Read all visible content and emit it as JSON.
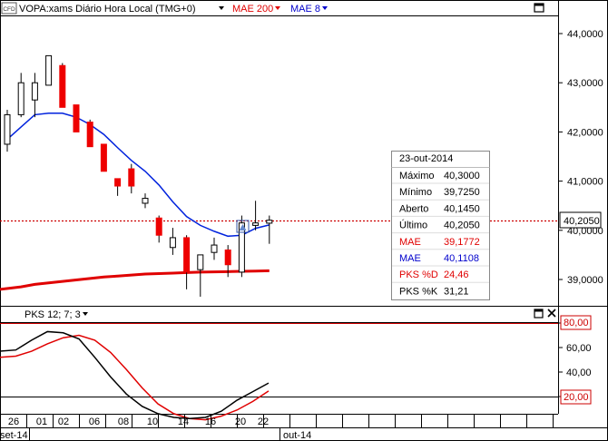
{
  "header": {
    "cfd_badge": "CFD",
    "instrument_label": "VOPA:xams Diário Hora Local (TMG+0)",
    "indicator_1": "MAE 200",
    "indicator_2": "MAE 8"
  },
  "price_axis": {
    "ticks": [
      "44,0000",
      "43,0000",
      "42,0000",
      "41,0000",
      "40,0000",
      "39,0000"
    ],
    "current_price": "40,2050"
  },
  "tooltip": {
    "date": "23-out-2014",
    "rows": [
      {
        "label": "Máximo",
        "value": "40,3000",
        "color": "#000000"
      },
      {
        "label": "Mínimo",
        "value": "39,7250",
        "color": "#000000"
      },
      {
        "label": "Aberto",
        "value": "40,1450",
        "color": "#000000"
      },
      {
        "label": "Último",
        "value": "40,2050",
        "color": "#000000"
      },
      {
        "label": "MAE",
        "value": "39,1772",
        "color": "#e00000"
      },
      {
        "label": "MAE",
        "value": "40,1108",
        "color": "#0000cc"
      },
      {
        "label": "PKS %D",
        "value": "24,46",
        "color": "#e00000"
      },
      {
        "label": "PKS %K",
        "value": "31,21",
        "color": "#000000"
      }
    ]
  },
  "oscillator": {
    "label": "PKS 12; 7; 3",
    "ticks": [
      "80,00",
      "60,00",
      "40,00",
      "20,00"
    ],
    "upper_level": "80,00",
    "lower_level": "20,00"
  },
  "date_axis": {
    "days": [
      "26",
      "01",
      "02",
      "06",
      "08",
      "10",
      "14",
      "16",
      "20",
      "22"
    ],
    "months": [
      "set-14",
      "out-14"
    ]
  },
  "colors": {
    "up_candle": "#ffffff",
    "down_candle": "#ee0000",
    "mae200": "#e00000",
    "mae8": "#0022dd",
    "stoch_k": "#000000",
    "stoch_d": "#e00000"
  },
  "chart_data": {
    "type": "candlestick",
    "price_range": [
      38.6,
      44.5
    ],
    "candles": [
      {
        "o": 41.75,
        "h": 42.45,
        "l": 41.6,
        "c": 42.35
      },
      {
        "o": 42.35,
        "h": 43.2,
        "l": 42.3,
        "c": 43.0
      },
      {
        "o": 42.65,
        "h": 43.2,
        "l": 42.3,
        "c": 43.0
      },
      {
        "o": 42.95,
        "h": 43.55,
        "l": 42.95,
        "c": 43.55
      },
      {
        "o": 43.35,
        "h": 43.4,
        "l": 42.5,
        "c": 42.5
      },
      {
        "o": 42.55,
        "h": 42.55,
        "l": 42.0,
        "c": 42.0
      },
      {
        "o": 42.2,
        "h": 42.25,
        "l": 41.7,
        "c": 41.7
      },
      {
        "o": 41.75,
        "h": 41.75,
        "l": 41.2,
        "c": 41.2
      },
      {
        "o": 41.05,
        "h": 41.05,
        "l": 40.7,
        "c": 40.9
      },
      {
        "o": 41.25,
        "h": 41.35,
        "l": 40.75,
        "c": 40.9
      },
      {
        "o": 40.55,
        "h": 40.75,
        "l": 40.45,
        "c": 40.65
      },
      {
        "o": 40.25,
        "h": 40.3,
        "l": 39.75,
        "c": 39.9
      },
      {
        "o": 39.65,
        "h": 40.05,
        "l": 39.5,
        "c": 39.85
      },
      {
        "o": 39.85,
        "h": 39.9,
        "l": 38.8,
        "c": 39.15
      },
      {
        "o": 39.2,
        "h": 39.5,
        "l": 38.65,
        "c": 39.5
      },
      {
        "o": 39.55,
        "h": 39.85,
        "l": 39.4,
        "c": 39.7
      },
      {
        "o": 39.6,
        "h": 39.7,
        "l": 39.05,
        "c": 39.3
      },
      {
        "o": 39.15,
        "h": 40.3,
        "l": 39.05,
        "c": 40.15
      },
      {
        "o": 40.1,
        "h": 40.6,
        "l": 40.0,
        "c": 40.15
      },
      {
        "o": 40.145,
        "h": 40.3,
        "l": 39.725,
        "c": 40.205
      }
    ],
    "mae8": [
      41.85,
      42.1,
      42.35,
      42.38,
      42.38,
      42.3,
      42.15,
      41.95,
      41.68,
      41.42,
      41.2,
      40.92,
      40.58,
      40.28,
      40.1,
      39.98,
      39.88,
      39.9,
      40.04,
      40.11
    ],
    "mae200": [
      38.8,
      38.85,
      38.9,
      38.93,
      38.96,
      38.99,
      39.02,
      39.05,
      39.07,
      39.09,
      39.11,
      39.12,
      39.13,
      39.14,
      39.15,
      39.155,
      39.16,
      39.165,
      39.17,
      39.177
    ],
    "stoch_range": [
      0,
      100
    ],
    "stoch_k": [
      57,
      58,
      66,
      73,
      72,
      67,
      52,
      36,
      22,
      12,
      6,
      3,
      2,
      3,
      8,
      17,
      24,
      31
    ],
    "stoch_d": [
      52,
      53,
      57,
      63,
      68,
      70,
      66,
      56,
      42,
      27,
      14,
      6,
      2,
      1,
      4,
      9,
      16,
      24.5
    ]
  }
}
